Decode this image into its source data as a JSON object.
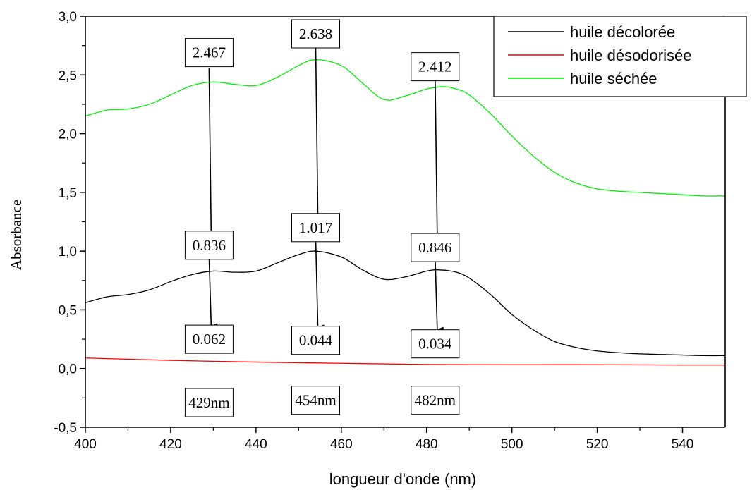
{
  "chart_data": {
    "type": "line",
    "title": "",
    "xlabel": "longueur d'onde (nm)",
    "ylabel": "Absorbance",
    "xlim": [
      400,
      550
    ],
    "ylim": [
      -0.5,
      3.0
    ],
    "x_ticks": [
      400,
      420,
      440,
      460,
      480,
      500,
      520,
      540
    ],
    "x_tick_labels": [
      "400",
      "420",
      "440",
      "460",
      "480",
      "500",
      "520",
      "540"
    ],
    "y_ticks": [
      -0.5,
      0.0,
      0.5,
      1.0,
      1.5,
      2.0,
      2.5,
      3.0
    ],
    "y_tick_labels": [
      "-0,5",
      "0,0",
      "0,5",
      "1,0",
      "1,5",
      "2,0",
      "2,5",
      "3,0"
    ],
    "grid": false,
    "legend_position": "top-right",
    "series": [
      {
        "name": "huile décolorée",
        "color": "#000000",
        "x": [
          400,
          405,
          410,
          415,
          420,
          425,
          430,
          435,
          440,
          445,
          450,
          454,
          460,
          465,
          470,
          475,
          480,
          483,
          487,
          490,
          495,
          500,
          505,
          510,
          515,
          520,
          525,
          530,
          535,
          540,
          545,
          550
        ],
        "y": [
          0.56,
          0.61,
          0.63,
          0.67,
          0.74,
          0.8,
          0.83,
          0.82,
          0.83,
          0.9,
          0.97,
          1.0,
          0.95,
          0.84,
          0.76,
          0.78,
          0.83,
          0.84,
          0.82,
          0.77,
          0.63,
          0.46,
          0.33,
          0.23,
          0.18,
          0.15,
          0.135,
          0.125,
          0.12,
          0.115,
          0.11,
          0.11
        ]
      },
      {
        "name": "huile désodorisée",
        "color": "#ff0000",
        "x": [
          400,
          420,
          440,
          460,
          480,
          500,
          520,
          540,
          550
        ],
        "y": [
          0.09,
          0.07,
          0.055,
          0.045,
          0.035,
          0.033,
          0.033,
          0.03,
          0.03
        ]
      },
      {
        "name": "huile séchée",
        "color": "#00ee00",
        "x": [
          400,
          405,
          410,
          415,
          420,
          425,
          430,
          435,
          440,
          445,
          450,
          454,
          460,
          465,
          470,
          475,
          480,
          484,
          487,
          490,
          495,
          500,
          505,
          510,
          515,
          520,
          525,
          530,
          535,
          540,
          545,
          550
        ],
        "y": [
          2.15,
          2.2,
          2.21,
          2.25,
          2.33,
          2.41,
          2.44,
          2.42,
          2.41,
          2.48,
          2.58,
          2.63,
          2.58,
          2.43,
          2.29,
          2.32,
          2.38,
          2.4,
          2.38,
          2.33,
          2.17,
          1.98,
          1.81,
          1.67,
          1.58,
          1.53,
          1.51,
          1.5,
          1.49,
          1.48,
          1.47,
          1.47
        ]
      }
    ],
    "annotations": {
      "value_boxes": [
        {
          "label": "2.467",
          "x": 429,
          "y": 2.69
        },
        {
          "label": "2.638",
          "x": 454,
          "y": 2.85
        },
        {
          "label": "2.412",
          "x": 482,
          "y": 2.57
        },
        {
          "label": "0.836",
          "x": 429,
          "y": 1.05
        },
        {
          "label": "1.017",
          "x": 454,
          "y": 1.2
        },
        {
          "label": "0.846",
          "x": 482,
          "y": 1.03
        },
        {
          "label": "0.062",
          "x": 429,
          "y": 0.25
        },
        {
          "label": "0.044",
          "x": 454,
          "y": 0.24
        },
        {
          "label": "0.034",
          "x": 482,
          "y": 0.21
        }
      ],
      "wavelength_boxes": [
        {
          "label": "429nm",
          "x": 429,
          "y": -0.29
        },
        {
          "label": "454nm",
          "x": 454,
          "y": -0.27
        },
        {
          "label": "482nm",
          "x": 482,
          "y": -0.27
        }
      ],
      "arrows": [
        {
          "x_from": 429,
          "y_from": 2.56,
          "x_to": 429.5,
          "y_to": 1.13
        },
        {
          "x_from": 454,
          "y_from": 2.73,
          "x_to": 454.5,
          "y_to": 1.3
        },
        {
          "x_from": 482,
          "y_from": 2.47,
          "x_to": 482.5,
          "y_to": 1.12
        },
        {
          "x_from": 429,
          "y_from": 0.96,
          "x_to": 429.5,
          "y_to": 0.36
        },
        {
          "x_from": 454,
          "y_from": 1.1,
          "x_to": 454.5,
          "y_to": 0.35
        },
        {
          "x_from": 482,
          "y_from": 0.95,
          "x_to": 482.5,
          "y_to": 0.33
        }
      ]
    }
  }
}
